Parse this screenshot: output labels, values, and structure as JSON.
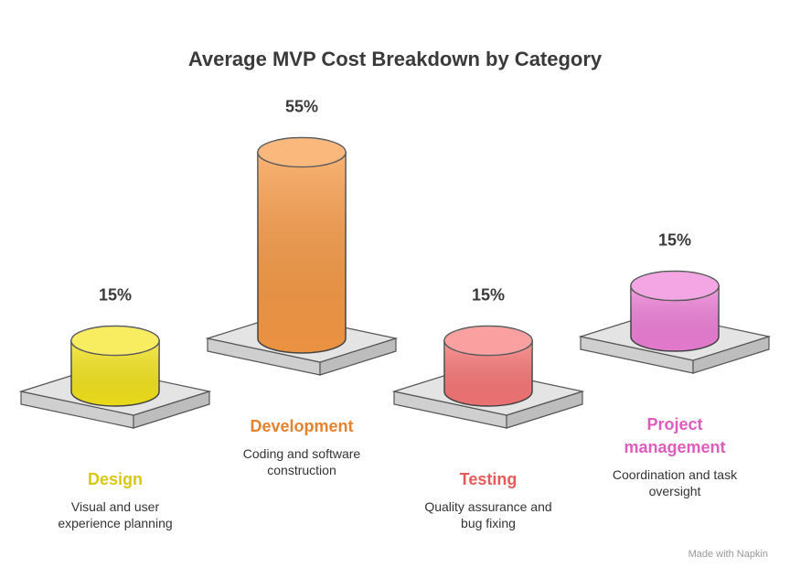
{
  "chart_data": {
    "type": "cylinder",
    "title": "Average MVP Cost Breakdown by Category",
    "categories": [
      "Design",
      "Development",
      "Testing",
      "Project management"
    ],
    "values": [
      15,
      55,
      15,
      15
    ],
    "value_labels": [
      "15%",
      "55%",
      "15%",
      "15%"
    ],
    "descriptions": [
      "Visual and user experience planning",
      "Coding and software construction",
      "Quality assurance and bug fixing",
      "Coordination and task oversight"
    ],
    "colors": [
      "#f5e51c",
      "#f89a45",
      "#f97777",
      "#ef80d8"
    ],
    "label_colors": [
      "#d8c812",
      "#e5822e",
      "#e85a5a",
      "#de5cbc"
    ],
    "watermark": "Made with Napkin"
  }
}
